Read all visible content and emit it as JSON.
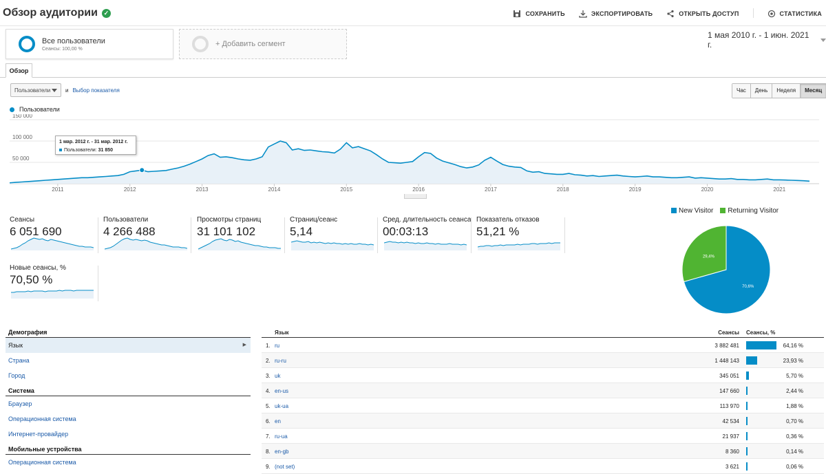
{
  "header": {
    "title": "Обзор аудитории",
    "actions": [
      "СОХРАНИТЬ",
      "ЭКСПОРТИРОВАТЬ",
      "ОТКРЫТЬ ДОСТУП",
      "СТАТИСТИКА"
    ]
  },
  "segments": {
    "active_name": "Все пользователи",
    "active_sub": "Сеансы: 100,00 %",
    "add_label": "+ Добавить сегмент"
  },
  "date_range": "1 мая 2010 г. - 1 июн. 2021 г.",
  "tabs": {
    "overview": "Обзор"
  },
  "controls": {
    "metric_select": "Пользователи",
    "and": "и",
    "choose_metric": "Выбор показателя",
    "granularity": [
      "Час",
      "День",
      "Неделя",
      "Месяц"
    ],
    "granularity_selected": "Месяц"
  },
  "chart_data": {
    "type": "area",
    "series": [
      {
        "name": "Пользователи"
      }
    ],
    "y_ticks": [
      "150 000",
      "100 000",
      "50 000"
    ],
    "x_ticks": [
      "2011",
      "2012",
      "2013",
      "2014",
      "2015",
      "2016",
      "2017",
      "2018",
      "2019",
      "2020",
      "2021"
    ],
    "ylim": [
      0,
      150000
    ],
    "x": [
      "2010-05",
      "2010-06",
      "2010-07",
      "2010-08",
      "2010-09",
      "2010-10",
      "2010-11",
      "2010-12",
      "2011-01",
      "2011-02",
      "2011-03",
      "2011-04",
      "2011-05",
      "2011-06",
      "2011-07",
      "2011-08",
      "2011-09",
      "2011-10",
      "2011-11",
      "2011-12",
      "2012-01",
      "2012-02",
      "2012-03",
      "2012-04",
      "2012-05",
      "2012-06",
      "2012-07",
      "2012-08",
      "2012-09",
      "2012-10",
      "2012-11",
      "2012-12",
      "2013-01",
      "2013-02",
      "2013-03",
      "2013-04",
      "2013-05",
      "2013-06",
      "2013-07",
      "2013-08",
      "2013-09",
      "2013-10",
      "2013-11",
      "2013-12",
      "2014-01",
      "2014-02",
      "2014-03",
      "2014-04",
      "2014-05",
      "2014-06",
      "2014-07",
      "2014-08",
      "2014-09",
      "2014-10",
      "2014-11",
      "2014-12",
      "2015-01",
      "2015-02",
      "2015-03",
      "2015-04",
      "2015-05",
      "2015-06",
      "2015-07",
      "2015-08",
      "2015-09",
      "2015-10",
      "2015-11",
      "2015-12",
      "2016-01",
      "2016-02",
      "2016-03",
      "2016-04",
      "2016-05",
      "2016-06",
      "2016-07",
      "2016-08",
      "2016-09",
      "2016-10",
      "2016-11",
      "2016-12",
      "2017-01",
      "2017-02",
      "2017-03",
      "2017-04",
      "2017-05",
      "2017-06",
      "2017-07",
      "2017-08",
      "2017-09",
      "2017-10",
      "2017-11",
      "2017-12",
      "2018-01",
      "2018-02",
      "2018-03",
      "2018-04",
      "2018-05",
      "2018-06",
      "2018-07",
      "2018-08",
      "2018-09",
      "2018-10",
      "2018-11",
      "2018-12",
      "2019-01",
      "2019-02",
      "2019-03",
      "2019-04",
      "2019-05",
      "2019-06",
      "2019-07",
      "2019-08",
      "2019-09",
      "2019-10",
      "2019-11",
      "2019-12",
      "2020-01",
      "2020-02",
      "2020-03",
      "2020-04",
      "2020-05",
      "2020-06",
      "2020-07",
      "2020-08",
      "2020-09",
      "2020-10",
      "2020-11",
      "2020-12",
      "2021-01",
      "2021-02",
      "2021-03",
      "2021-04",
      "2021-05",
      "2021-06"
    ],
    "values": [
      2000,
      3000,
      4000,
      5000,
      6000,
      7000,
      8000,
      9000,
      10000,
      11000,
      12000,
      13000,
      14000,
      14000,
      15000,
      16000,
      17000,
      18000,
      19000,
      22000,
      28000,
      30000,
      31850,
      28000,
      29000,
      30000,
      31000,
      34000,
      37000,
      41000,
      46000,
      52000,
      58000,
      66000,
      70000,
      62000,
      63000,
      61000,
      58000,
      56000,
      55000,
      58000,
      63000,
      86000,
      93000,
      100000,
      96000,
      79000,
      82000,
      78000,
      79000,
      77000,
      75000,
      74000,
      72000,
      81000,
      96000,
      84000,
      87000,
      82000,
      77000,
      68000,
      58000,
      50000,
      49000,
      48000,
      50000,
      52000,
      63000,
      73000,
      71000,
      60000,
      53000,
      49000,
      45000,
      40000,
      37000,
      39000,
      44000,
      55000,
      62000,
      53000,
      45000,
      41000,
      39000,
      38000,
      30000,
      27000,
      28000,
      24000,
      23000,
      22000,
      22000,
      24000,
      21000,
      20000,
      18000,
      19000,
      17000,
      18000,
      19000,
      20000,
      18000,
      17000,
      16000,
      17000,
      18000,
      16000,
      16000,
      15000,
      14000,
      14000,
      15000,
      16000,
      13000,
      14000,
      13000,
      12000,
      11000,
      11000,
      12000,
      10000,
      10000,
      9000,
      9000,
      10000,
      11000,
      9000,
      9000,
      8500,
      8000,
      7500,
      7000,
      6000
    ],
    "tooltip": {
      "date": "1 мар. 2012 г. - 31 мар. 2012 г.",
      "label": "Пользователи",
      "value": "31 850"
    }
  },
  "metrics": [
    {
      "label": "Сеансы",
      "value": "6 051 690"
    },
    {
      "label": "Пользователи",
      "value": "4 266 488"
    },
    {
      "label": "Просмотры страниц",
      "value": "31 101 102"
    },
    {
      "label": "Страниц/сеанс",
      "value": "5,14"
    },
    {
      "label": "Сред. длительность сеанса",
      "value": "00:03:13"
    },
    {
      "label": "Показатель отказов",
      "value": "51,21 %"
    },
    {
      "label": "Новые сеансы, %",
      "value": "70,50 %"
    }
  ],
  "pie": {
    "legend": [
      "New Visitor",
      "Returning Visitor"
    ],
    "values": [
      70.6,
      29.4
    ],
    "labels": [
      "70,6%",
      "29,4%"
    ],
    "colors": [
      "#058dc7",
      "#50b432"
    ]
  },
  "demography": {
    "sections": [
      {
        "title": "Демография",
        "items": [
          "Язык",
          "Страна",
          "Город"
        ]
      },
      {
        "title": "Система",
        "items": [
          "Браузер",
          "Операционная система",
          "Интернет-провайдер"
        ]
      },
      {
        "title": "Мобильные устройства",
        "items": [
          "Операционная система"
        ]
      }
    ]
  },
  "table": {
    "headers": [
      "Язык",
      "Сеансы",
      "Сеансы, %"
    ],
    "rows": [
      {
        "n": "1.",
        "lang": "ru",
        "sessions": "3 882 481",
        "pct": "64,16 %",
        "share": 64.16
      },
      {
        "n": "2.",
        "lang": "ru-ru",
        "sessions": "1 448 143",
        "pct": "23,93 %",
        "share": 23.93
      },
      {
        "n": "3.",
        "lang": "uk",
        "sessions": "345 051",
        "pct": "5,70 %",
        "share": 5.7
      },
      {
        "n": "4.",
        "lang": "en-us",
        "sessions": "147 660",
        "pct": "2,44 %",
        "share": 2.44
      },
      {
        "n": "5.",
        "lang": "uk-ua",
        "sessions": "113 970",
        "pct": "1,88 %",
        "share": 1.88
      },
      {
        "n": "6.",
        "lang": "en",
        "sessions": "42 534",
        "pct": "0,70 %",
        "share": 0.7
      },
      {
        "n": "7.",
        "lang": "ru-ua",
        "sessions": "21 937",
        "pct": "0,36 %",
        "share": 0.36
      },
      {
        "n": "8.",
        "lang": "en-gb",
        "sessions": "8 360",
        "pct": "0,14 %",
        "share": 0.14
      },
      {
        "n": "9.",
        "lang": "(not set)",
        "sessions": "3 621",
        "pct": "0,06 %",
        "share": 0.06
      }
    ]
  }
}
